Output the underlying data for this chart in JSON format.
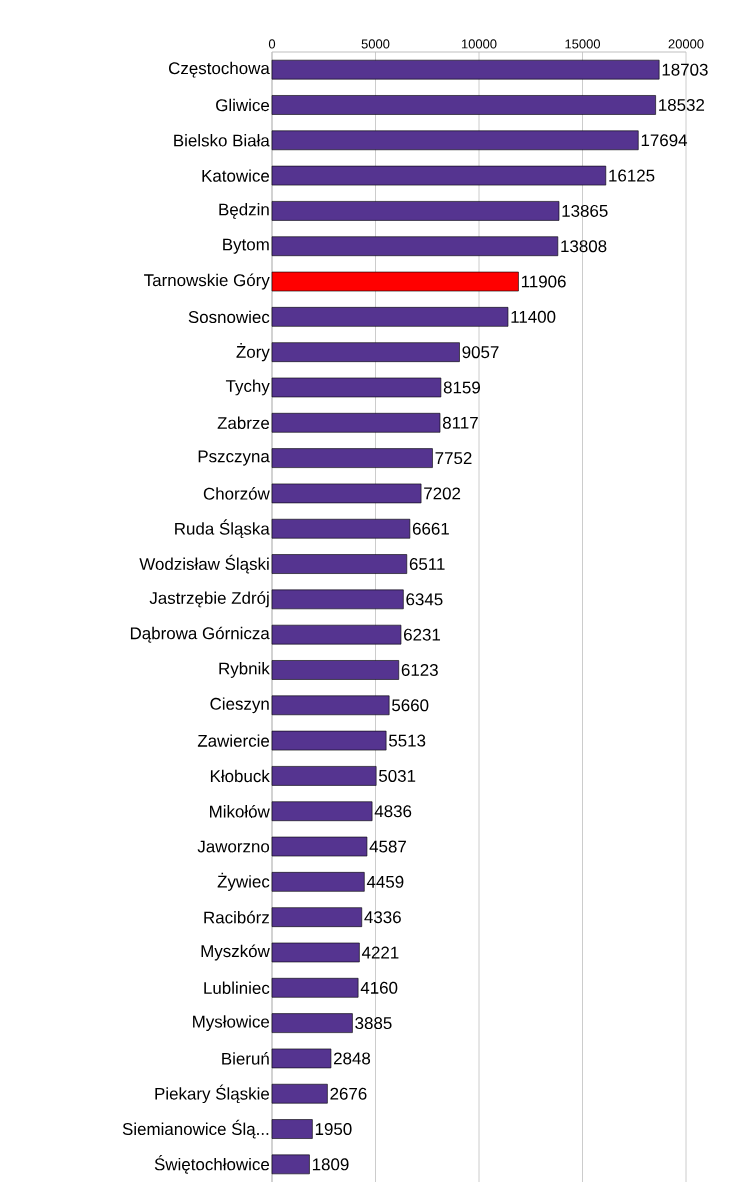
{
  "chart_data": {
    "type": "bar",
    "orientation": "horizontal",
    "categories": [
      "Częstochowa",
      "Gliwice",
      "Bielsko Biała",
      "Katowice",
      "Będzin",
      "Bytom",
      "Tarnowskie Góry",
      "Sosnowiec",
      "Żory",
      "Tychy",
      "Zabrze",
      "Pszczyna",
      "Chorzów",
      "Ruda Śląska",
      "Wodzisław Śląski",
      "Jastrzębie Zdrój",
      "Dąbrowa Górnicza",
      "Rybnik",
      "Cieszyn",
      "Zawiercie",
      "Kłobuck",
      "Mikołów",
      "Jaworzno",
      "Żywiec",
      "Racibórz",
      "Myszków",
      "Lubliniec",
      "Mysłowice",
      "Bieruń",
      "Piekary Śląskie",
      "Siemianowice Ślą...",
      "Świętochłowice"
    ],
    "values": [
      18703,
      18532,
      17694,
      16125,
      13865,
      13808,
      11906,
      11400,
      9057,
      8159,
      8117,
      7752,
      7202,
      6661,
      6511,
      6345,
      6231,
      6123,
      5660,
      5513,
      5031,
      4836,
      4587,
      4459,
      4336,
      4221,
      4160,
      3885,
      2848,
      2676,
      1950,
      1809
    ],
    "colors": [
      "#553490",
      "#553490",
      "#553490",
      "#553490",
      "#553490",
      "#553490",
      "#ff0000",
      "#553490",
      "#553490",
      "#553490",
      "#553490",
      "#553490",
      "#553490",
      "#553490",
      "#553490",
      "#553490",
      "#553490",
      "#553490",
      "#553490",
      "#553490",
      "#553490",
      "#553490",
      "#553490",
      "#553490",
      "#553490",
      "#553490",
      "#553490",
      "#553490",
      "#553490",
      "#553490",
      "#553490",
      "#553490"
    ],
    "xlim": [
      0,
      20000
    ],
    "xticks": [
      0,
      5000,
      10000,
      15000,
      20000
    ],
    "grid": "x",
    "data_labels": true
  }
}
